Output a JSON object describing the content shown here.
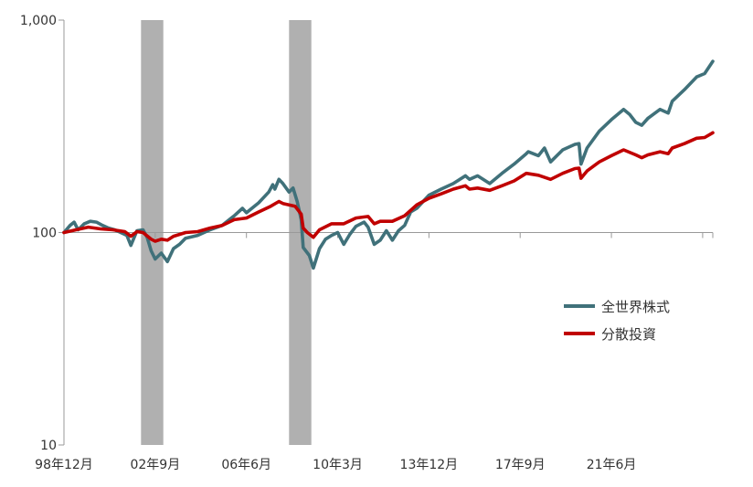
{
  "chart_data": {
    "type": "line",
    "title": "",
    "xlabel": "",
    "ylabel": "",
    "y_scale": "log",
    "ylim": [
      10,
      1000
    ],
    "y_ticks": [
      {
        "value": 10,
        "label": "10"
      },
      {
        "value": 100,
        "label": "100"
      },
      {
        "value": 1000,
        "label": "1,000"
      }
    ],
    "x_range": [
      "1998-12",
      "2025-08"
    ],
    "x_ticks": [
      {
        "date": "1998-12",
        "label": "98年12月"
      },
      {
        "date": "2002-09",
        "label": "02年9月"
      },
      {
        "date": "2006-06",
        "label": "06年6月"
      },
      {
        "date": "2010-03",
        "label": "10年3月"
      },
      {
        "date": "2013-12",
        "label": "13年12月"
      },
      {
        "date": "2017-09",
        "label": "17年9月"
      },
      {
        "date": "2021-06",
        "label": "21年6月"
      }
    ],
    "x_minor_ticks": [
      "2025-03"
    ],
    "shaded_periods": [
      {
        "start": "2002-02",
        "end": "2003-01",
        "color": "#b0b0b0"
      },
      {
        "start": "2008-03",
        "end": "2009-02",
        "color": "#b0b0b0"
      }
    ],
    "grid": false,
    "legend_position": "right",
    "series": [
      {
        "name": "全世界株式",
        "color": "#40717a",
        "points": [
          [
            "1998-12",
            100
          ],
          [
            "1999-03",
            108
          ],
          [
            "1999-05",
            112
          ],
          [
            "1999-07",
            103
          ],
          [
            "1999-10",
            110
          ],
          [
            "2000-01",
            113
          ],
          [
            "2000-04",
            112
          ],
          [
            "2000-07",
            108
          ],
          [
            "2000-10",
            105
          ],
          [
            "2001-01",
            103
          ],
          [
            "2001-04",
            100
          ],
          [
            "2001-07",
            97
          ],
          [
            "2001-09",
            87
          ],
          [
            "2001-12",
            102
          ],
          [
            "2002-03",
            103
          ],
          [
            "2002-05",
            95
          ],
          [
            "2002-07",
            82
          ],
          [
            "2002-09",
            75
          ],
          [
            "2002-12",
            80
          ],
          [
            "2003-03",
            73
          ],
          [
            "2003-06",
            84
          ],
          [
            "2003-09",
            88
          ],
          [
            "2003-12",
            94
          ],
          [
            "2004-06",
            97
          ],
          [
            "2004-12",
            103
          ],
          [
            "2005-06",
            108
          ],
          [
            "2005-12",
            120
          ],
          [
            "2006-04",
            130
          ],
          [
            "2006-06",
            124
          ],
          [
            "2006-12",
            138
          ],
          [
            "2007-05",
            155
          ],
          [
            "2007-07",
            168
          ],
          [
            "2007-08",
            160
          ],
          [
            "2007-10",
            178
          ],
          [
            "2007-12",
            170
          ],
          [
            "2008-03",
            155
          ],
          [
            "2008-05",
            162
          ],
          [
            "2008-07",
            140
          ],
          [
            "2008-09",
            115
          ],
          [
            "2008-10",
            85
          ],
          [
            "2009-01",
            78
          ],
          [
            "2009-03",
            68
          ],
          [
            "2009-06",
            84
          ],
          [
            "2009-09",
            93
          ],
          [
            "2009-12",
            97
          ],
          [
            "2010-03",
            100
          ],
          [
            "2010-06",
            88
          ],
          [
            "2010-09",
            98
          ],
          [
            "2010-12",
            107
          ],
          [
            "2011-04",
            112
          ],
          [
            "2011-06",
            106
          ],
          [
            "2011-09",
            88
          ],
          [
            "2011-12",
            92
          ],
          [
            "2012-03",
            102
          ],
          [
            "2012-06",
            92
          ],
          [
            "2012-09",
            102
          ],
          [
            "2012-12",
            108
          ],
          [
            "2013-03",
            125
          ],
          [
            "2013-06",
            130
          ],
          [
            "2013-12",
            150
          ],
          [
            "2014-06",
            160
          ],
          [
            "2014-12",
            170
          ],
          [
            "2015-06",
            185
          ],
          [
            "2015-08",
            178
          ],
          [
            "2015-12",
            185
          ],
          [
            "2016-06",
            170
          ],
          [
            "2016-12",
            190
          ],
          [
            "2017-06",
            210
          ],
          [
            "2017-12",
            235
          ],
          [
            "2018-01",
            240
          ],
          [
            "2018-06",
            230
          ],
          [
            "2018-09",
            250
          ],
          [
            "2018-12",
            215
          ],
          [
            "2019-06",
            245
          ],
          [
            "2019-12",
            260
          ],
          [
            "2020-02",
            262
          ],
          [
            "2020-03",
            210
          ],
          [
            "2020-06",
            250
          ],
          [
            "2020-12",
            300
          ],
          [
            "2021-06",
            340
          ],
          [
            "2021-12",
            380
          ],
          [
            "2022-03",
            360
          ],
          [
            "2022-06",
            330
          ],
          [
            "2022-09",
            320
          ],
          [
            "2022-12",
            345
          ],
          [
            "2023-06",
            380
          ],
          [
            "2023-10",
            365
          ],
          [
            "2023-12",
            415
          ],
          [
            "2024-06",
            470
          ],
          [
            "2024-12",
            540
          ],
          [
            "2025-04",
            560
          ],
          [
            "2025-08",
            640
          ]
        ]
      },
      {
        "name": "分散投資",
        "color": "#c00000",
        "points": [
          [
            "1998-12",
            100
          ],
          [
            "1999-06",
            103
          ],
          [
            "1999-12",
            106
          ],
          [
            "2000-06",
            104
          ],
          [
            "2000-12",
            103
          ],
          [
            "2001-06",
            101
          ],
          [
            "2001-09",
            96
          ],
          [
            "2001-12",
            101
          ],
          [
            "2002-03",
            100
          ],
          [
            "2002-07",
            93
          ],
          [
            "2002-09",
            91
          ],
          [
            "2002-12",
            93
          ],
          [
            "2003-03",
            92
          ],
          [
            "2003-06",
            96
          ],
          [
            "2003-12",
            100
          ],
          [
            "2004-06",
            101
          ],
          [
            "2004-12",
            105
          ],
          [
            "2005-06",
            108
          ],
          [
            "2005-12",
            115
          ],
          [
            "2006-06",
            117
          ],
          [
            "2006-12",
            125
          ],
          [
            "2007-06",
            133
          ],
          [
            "2007-10",
            140
          ],
          [
            "2007-12",
            137
          ],
          [
            "2008-06",
            133
          ],
          [
            "2008-09",
            122
          ],
          [
            "2008-10",
            105
          ],
          [
            "2008-12",
            100
          ],
          [
            "2009-03",
            95
          ],
          [
            "2009-06",
            103
          ],
          [
            "2009-12",
            110
          ],
          [
            "2010-06",
            110
          ],
          [
            "2010-12",
            117
          ],
          [
            "2011-06",
            119
          ],
          [
            "2011-09",
            110
          ],
          [
            "2011-12",
            113
          ],
          [
            "2012-06",
            113
          ],
          [
            "2012-12",
            120
          ],
          [
            "2013-06",
            135
          ],
          [
            "2013-12",
            145
          ],
          [
            "2014-06",
            152
          ],
          [
            "2014-12",
            160
          ],
          [
            "2015-06",
            166
          ],
          [
            "2015-08",
            160
          ],
          [
            "2015-12",
            162
          ],
          [
            "2016-06",
            158
          ],
          [
            "2016-12",
            166
          ],
          [
            "2017-06",
            175
          ],
          [
            "2017-12",
            190
          ],
          [
            "2018-06",
            186
          ],
          [
            "2018-12",
            178
          ],
          [
            "2019-06",
            190
          ],
          [
            "2019-12",
            200
          ],
          [
            "2020-02",
            201
          ],
          [
            "2020-03",
            180
          ],
          [
            "2020-06",
            195
          ],
          [
            "2020-12",
            215
          ],
          [
            "2021-06",
            230
          ],
          [
            "2021-12",
            245
          ],
          [
            "2022-06",
            232
          ],
          [
            "2022-09",
            225
          ],
          [
            "2022-12",
            232
          ],
          [
            "2023-06",
            240
          ],
          [
            "2023-10",
            235
          ],
          [
            "2023-12",
            250
          ],
          [
            "2024-06",
            262
          ],
          [
            "2024-12",
            278
          ],
          [
            "2025-04",
            280
          ],
          [
            "2025-08",
            295
          ]
        ]
      }
    ]
  }
}
